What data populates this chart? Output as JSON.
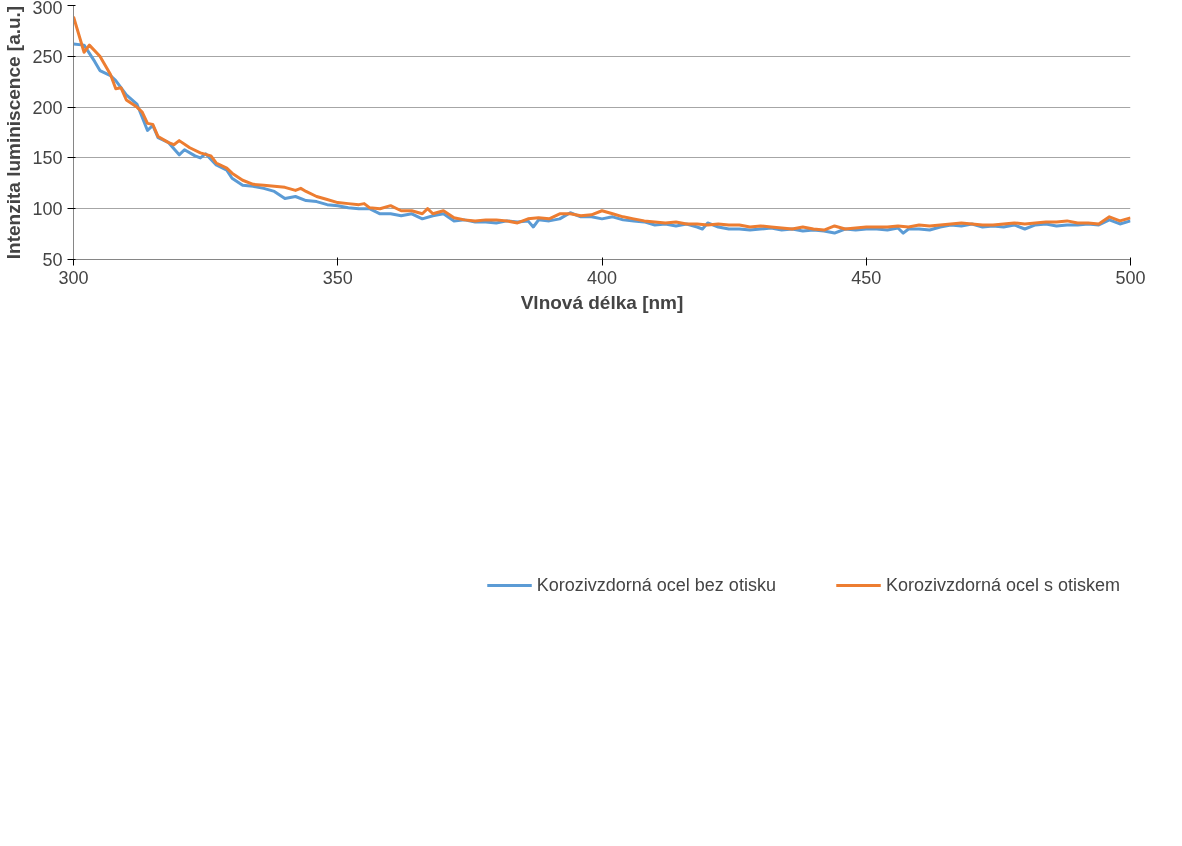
{
  "chart_data": {
    "type": "line",
    "xlabel": "Vlnová délka [nm]",
    "ylabel": "Intenzita luminiscence [a.u.]",
    "xlim": [
      300,
      500
    ],
    "xticks": [
      300,
      350,
      400,
      450,
      500
    ],
    "ylim": [
      50,
      300
    ],
    "yticks": [
      50,
      100,
      150,
      200,
      250,
      300
    ],
    "grid": "y",
    "legend": "bottom",
    "marker": "none",
    "line_style": "solid",
    "series": [
      {
        "name": "Korozivzdorná ocel bez otisku",
        "color": "#5b9bd5",
        "x": [
          300,
          302,
          304,
          305,
          307,
          308,
          310,
          312,
          313,
          314,
          315,
          316,
          318,
          320,
          321,
          323,
          324,
          325,
          327,
          329,
          330,
          332,
          334,
          336,
          338,
          340,
          342,
          344,
          346,
          348,
          350,
          352,
          354,
          356,
          358,
          360,
          362,
          364,
          366,
          368,
          370,
          372,
          374,
          376,
          378,
          380,
          382,
          384,
          386,
          387,
          388,
          390,
          392,
          394,
          396,
          398,
          400,
          402,
          404,
          406,
          408,
          410,
          412,
          414,
          416,
          418,
          419,
          420,
          422,
          424,
          426,
          428,
          430,
          432,
          434,
          436,
          438,
          440,
          442,
          444,
          446,
          448,
          450,
          452,
          454,
          456,
          457,
          458,
          460,
          462,
          464,
          466,
          468,
          470,
          472,
          474,
          476,
          478,
          480,
          482,
          484,
          486,
          488,
          490,
          492,
          494,
          496,
          498,
          500
        ],
        "values": [
          262,
          261,
          245,
          236,
          231,
          226,
          212,
          203,
          190,
          177,
          182,
          170,
          165,
          153,
          158,
          152,
          150,
          154,
          143,
          138,
          130,
          123,
          122,
          120,
          117,
          110,
          112,
          108,
          107,
          104,
          103,
          101,
          100,
          100,
          95,
          95,
          93,
          95,
          90,
          93,
          95,
          88,
          89,
          87,
          87,
          86,
          88,
          87,
          88,
          82,
          89,
          88,
          90,
          96,
          92,
          92,
          90,
          92,
          89,
          88,
          87,
          84,
          85,
          83,
          85,
          82,
          80,
          86,
          82,
          80,
          80,
          79,
          80,
          81,
          79,
          80,
          78,
          79,
          78,
          76,
          80,
          79,
          80,
          80,
          79,
          81,
          76,
          80,
          80,
          79,
          82,
          84,
          83,
          85,
          82,
          83,
          82,
          84,
          80,
          84,
          85,
          83,
          84,
          84,
          85,
          84,
          89,
          85,
          88
        ]
      },
      {
        "name": "Korozivzdorná ocel s otiskem",
        "color": "#ed7d31",
        "x": [
          300,
          302,
          303,
          305,
          307,
          308,
          309,
          310,
          312,
          313,
          314,
          315,
          316,
          318,
          319,
          320,
          322,
          324,
          326,
          327,
          329,
          330,
          332,
          334,
          336,
          338,
          340,
          342,
          343,
          344,
          346,
          348,
          350,
          352,
          354,
          355,
          356,
          358,
          360,
          362,
          364,
          366,
          367,
          368,
          370,
          372,
          374,
          376,
          378,
          380,
          382,
          384,
          386,
          388,
          390,
          392,
          394,
          396,
          398,
          400,
          402,
          404,
          406,
          408,
          410,
          412,
          414,
          416,
          418,
          420,
          422,
          424,
          426,
          428,
          430,
          432,
          434,
          436,
          438,
          440,
          442,
          444,
          446,
          448,
          450,
          452,
          454,
          456,
          458,
          460,
          462,
          464,
          466,
          468,
          470,
          472,
          474,
          476,
          478,
          480,
          482,
          484,
          486,
          488,
          490,
          492,
          494,
          496,
          498,
          500
        ],
        "values": [
          289,
          254,
          261,
          250,
          232,
          218,
          219,
          207,
          200,
          195,
          184,
          183,
          171,
          165,
          163,
          167,
          160,
          155,
          152,
          145,
          140,
          135,
          128,
          124,
          123,
          122,
          121,
          118,
          120,
          117,
          112,
          109,
          106,
          105,
          104,
          105,
          101,
          100,
          103,
          98,
          98,
          95,
          100,
          95,
          98,
          91,
          89,
          88,
          89,
          89,
          88,
          86,
          90,
          91,
          90,
          95,
          95,
          93,
          94,
          98,
          95,
          92,
          90,
          88,
          87,
          86,
          87,
          85,
          85,
          84,
          85,
          84,
          84,
          82,
          83,
          82,
          81,
          80,
          82,
          80,
          79,
          83,
          80,
          81,
          82,
          82,
          82,
          83,
          82,
          84,
          83,
          84,
          85,
          86,
          85,
          84,
          84,
          85,
          86,
          85,
          86,
          87,
          87,
          88,
          86,
          86,
          85,
          92,
          88,
          91
        ]
      }
    ]
  }
}
